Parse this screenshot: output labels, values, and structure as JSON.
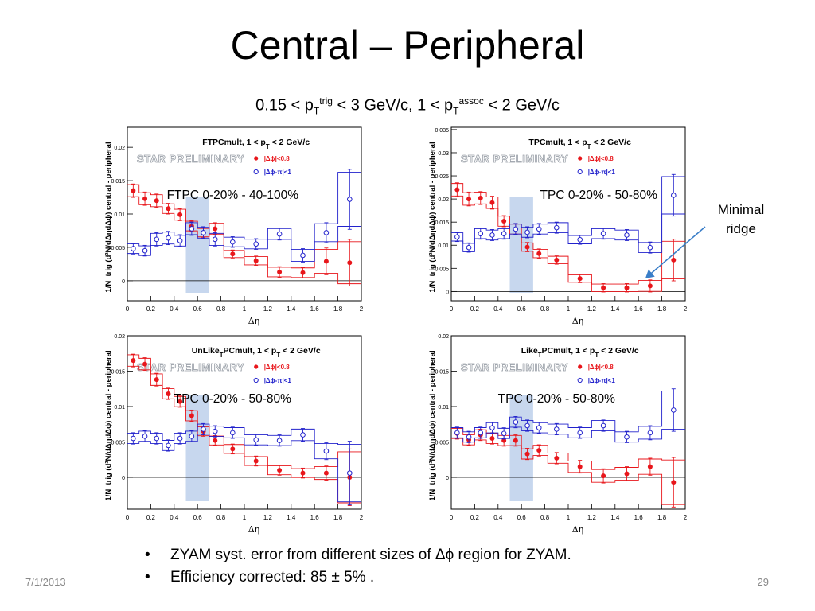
{
  "slide": {
    "title": "Central – Peripheral",
    "subtitle_parts": [
      "0.15 < p",
      "T",
      "trig",
      " < 3 GeV/c, 1 < p",
      "T",
      "assoc",
      " < 2 GeV/c"
    ],
    "callout": [
      "Minimal",
      "ridge"
    ],
    "bullets": [
      "ZYAM syst. error from different sizes of Δϕ region for ZYAM.",
      "Efficiency corrected: 85 ± 5% ."
    ],
    "footer_date": "7/1/2013",
    "page_number": "29"
  },
  "colors": {
    "red": "#e8161b",
    "blue": "#2222cc",
    "band": "#c7d7ee"
  },
  "chart_data": [
    {
      "type": "scatter",
      "title": "FTPCmult, 1 < p_T < 2 GeV/c",
      "watermark": "STAR PRELIMINARY",
      "label": "FTPC 0-20% - 40-100%",
      "xlabel": "Δη",
      "ylabel": "1/N_trig (d²N/dΔηdΔϕ) central - peripheral",
      "xlim": [
        0,
        2
      ],
      "ylim": [
        -0.003,
        0.023
      ],
      "xticks": [
        "0",
        "0.2",
        "0.4",
        "0.6",
        "0.8",
        "1",
        "1.2",
        "1.4",
        "1.6",
        "1.8",
        "2"
      ],
      "yticks": [
        "0",
        "0.005",
        "0.01",
        "0.015",
        "0.02"
      ],
      "band": [
        0.5,
        0.7
      ],
      "series": [
        {
          "name": "|Δϕ|<0.8",
          "x": [
            0.05,
            0.15,
            0.25,
            0.35,
            0.45,
            0.55,
            0.65,
            0.75,
            0.9,
            1.1,
            1.3,
            1.5,
            1.7,
            1.9
          ],
          "y": [
            0.0135,
            0.0123,
            0.012,
            0.0108,
            0.0099,
            0.0082,
            0.0072,
            0.0078,
            0.004,
            0.003,
            0.0013,
            0.0012,
            0.0029,
            0.0027
          ],
          "err": [
            0.001,
            0.001,
            0.001,
            0.0008,
            0.0009,
            0.0008,
            0.0007,
            0.0009,
            0.0006,
            0.0007,
            0.0008,
            0.0008,
            0.002,
            0.0035
          ]
        },
        {
          "name": "|Δϕ-π|<1",
          "x": [
            0.05,
            0.15,
            0.25,
            0.35,
            0.45,
            0.55,
            0.65,
            0.75,
            0.9,
            1.1,
            1.3,
            1.5,
            1.7,
            1.9
          ],
          "y": [
            0.0048,
            0.0045,
            0.0062,
            0.0064,
            0.006,
            0.0078,
            0.0072,
            0.0062,
            0.0058,
            0.0055,
            0.007,
            0.0038,
            0.0072,
            0.0122
          ],
          "err": [
            0.0008,
            0.0008,
            0.001,
            0.001,
            0.0009,
            0.001,
            0.0009,
            0.001,
            0.0008,
            0.0008,
            0.0009,
            0.001,
            0.0015,
            0.0045
          ]
        }
      ]
    },
    {
      "type": "scatter",
      "title": "TPCmult, 1 < p_T < 2 GeV/c",
      "watermark": "STAR PRELIMINARY",
      "label": "TPC 0-20% - 50-80%",
      "xlabel": "Δη",
      "ylabel": "1/N_trig (d²N/dΔηdΔϕ) central - peripheral",
      "xlim": [
        0,
        2
      ],
      "ylim": [
        -0.002,
        0.0355
      ],
      "xticks": [
        "0",
        "0.2",
        "0.4",
        "0.6",
        "0.8",
        "1",
        "1.2",
        "1.4",
        "1.6",
        "1.8",
        "2"
      ],
      "yticks": [
        "0",
        "0.005",
        "0.01",
        "0.015",
        "0.02",
        "0.025",
        "0.03",
        "0.035"
      ],
      "band": [
        0.5,
        0.7
      ],
      "series": [
        {
          "name": "|Δϕ|<0.8",
          "x": [
            0.05,
            0.15,
            0.25,
            0.35,
            0.45,
            0.55,
            0.65,
            0.75,
            0.9,
            1.1,
            1.3,
            1.5,
            1.7,
            1.9
          ],
          "y": [
            0.022,
            0.02,
            0.0202,
            0.0192,
            0.0152,
            0.0135,
            0.0096,
            0.0082,
            0.0068,
            0.0028,
            0.0008,
            0.0008,
            0.0012,
            0.0068
          ],
          "err": [
            0.0015,
            0.0015,
            0.0014,
            0.0014,
            0.0012,
            0.0012,
            0.001,
            0.001,
            0.0009,
            0.0009,
            0.0009,
            0.0009,
            0.0013,
            0.0045
          ]
        },
        {
          "name": "|Δϕ-π|<1",
          "x": [
            0.05,
            0.15,
            0.25,
            0.35,
            0.45,
            0.55,
            0.65,
            0.75,
            0.9,
            1.1,
            1.3,
            1.5,
            1.7,
            1.9
          ],
          "y": [
            0.0118,
            0.0095,
            0.0125,
            0.0122,
            0.0125,
            0.0135,
            0.0128,
            0.0135,
            0.0138,
            0.0112,
            0.0125,
            0.0122,
            0.0095,
            0.0208
          ],
          "err": [
            0.001,
            0.001,
            0.0012,
            0.0012,
            0.0012,
            0.0012,
            0.0012,
            0.0012,
            0.0012,
            0.001,
            0.0012,
            0.0012,
            0.0012,
            0.0045
          ]
        }
      ]
    },
    {
      "type": "scatter",
      "title": "UnLike_TPCmult, 1 < p_T < 2 GeV/c",
      "watermark": "STAR PRELIMINARY",
      "label": "TPC 0-20% - 50-80%",
      "xlabel": "Δη",
      "ylabel": "1/N_trig (d²N/dΔηdΔϕ) central - peripheral",
      "xlim": [
        0,
        2
      ],
      "ylim": [
        -0.0045,
        0.02
      ],
      "xticks": [
        "0",
        "0.2",
        "0.4",
        "0.6",
        "0.8",
        "1",
        "1.2",
        "1.4",
        "1.6",
        "1.8",
        "2"
      ],
      "yticks": [
        "0",
        "0.005",
        "0.01",
        "0.015",
        "0.02"
      ],
      "band": [
        0.5,
        0.7
      ],
      "series": [
        {
          "name": "|Δϕ|<0.8",
          "x": [
            0.05,
            0.15,
            0.25,
            0.35,
            0.45,
            0.55,
            0.65,
            0.75,
            0.9,
            1.1,
            1.3,
            1.5,
            1.7,
            1.9
          ],
          "y": [
            0.0165,
            0.016,
            0.0138,
            0.0118,
            0.0107,
            0.0087,
            0.0065,
            0.0052,
            0.004,
            0.0023,
            0.001,
            0.0006,
            0.0006,
            0.0
          ],
          "err": [
            0.0009,
            0.0009,
            0.0009,
            0.0008,
            0.0008,
            0.0008,
            0.0007,
            0.0007,
            0.0007,
            0.0007,
            0.0007,
            0.0007,
            0.001,
            0.004
          ]
        },
        {
          "name": "|Δϕ-π|<1",
          "x": [
            0.05,
            0.15,
            0.25,
            0.35,
            0.45,
            0.55,
            0.65,
            0.75,
            0.9,
            1.1,
            1.3,
            1.5,
            1.7,
            1.9
          ],
          "y": [
            0.0055,
            0.0058,
            0.0055,
            0.0045,
            0.0055,
            0.0058,
            0.0068,
            0.0065,
            0.0063,
            0.0053,
            0.0052,
            0.006,
            0.0037,
            0.0006
          ],
          "err": [
            0.0008,
            0.0008,
            0.0008,
            0.0008,
            0.0008,
            0.0008,
            0.0008,
            0.0008,
            0.0008,
            0.0008,
            0.0008,
            0.0009,
            0.0012,
            0.0045
          ]
        }
      ]
    },
    {
      "type": "scatter",
      "title": "Like_TPCmult, 1 < p_T < 2 GeV/c",
      "watermark": "STAR PRELIMINARY",
      "label": "TPC 0-20% - 50-80%",
      "xlabel": "Δη",
      "ylabel": "1/N_trig (d²N/dΔηdΔϕ) central - peripheral",
      "xlim": [
        0,
        2
      ],
      "ylim": [
        -0.0045,
        0.02
      ],
      "xticks": [
        "0",
        "0.2",
        "0.4",
        "0.6",
        "0.8",
        "1",
        "1.2",
        "1.4",
        "1.6",
        "1.8",
        "2"
      ],
      "yticks": [
        "0",
        "0.005",
        "0.01",
        "0.015",
        "0.02"
      ],
      "band": [
        0.5,
        0.7
      ],
      "series": [
        {
          "name": "|Δϕ|<0.8",
          "x": [
            0.05,
            0.15,
            0.25,
            0.35,
            0.45,
            0.55,
            0.65,
            0.75,
            0.9,
            1.1,
            1.3,
            1.5,
            1.7,
            1.9
          ],
          "y": [
            0.0062,
            0.0053,
            0.006,
            0.0055,
            0.0052,
            0.0052,
            0.0033,
            0.0038,
            0.0027,
            0.0015,
            0.0002,
            0.0005,
            0.0015,
            -0.0007
          ],
          "err": [
            0.0008,
            0.0008,
            0.0008,
            0.0008,
            0.0008,
            0.0008,
            0.0008,
            0.0008,
            0.0008,
            0.0009,
            0.001,
            0.001,
            0.0012,
            0.0035
          ]
        },
        {
          "name": "|Δϕ-π|<1",
          "x": [
            0.05,
            0.15,
            0.25,
            0.35,
            0.45,
            0.55,
            0.65,
            0.75,
            0.9,
            1.1,
            1.3,
            1.5,
            1.7,
            1.9
          ],
          "y": [
            0.0063,
            0.0057,
            0.0063,
            0.007,
            0.0062,
            0.0078,
            0.0073,
            0.007,
            0.0068,
            0.0063,
            0.0073,
            0.0057,
            0.0063,
            0.0095
          ],
          "err": [
            0.0008,
            0.0008,
            0.0008,
            0.0008,
            0.0008,
            0.0008,
            0.0008,
            0.0008,
            0.0008,
            0.0008,
            0.0008,
            0.0008,
            0.001,
            0.003
          ]
        }
      ]
    }
  ]
}
